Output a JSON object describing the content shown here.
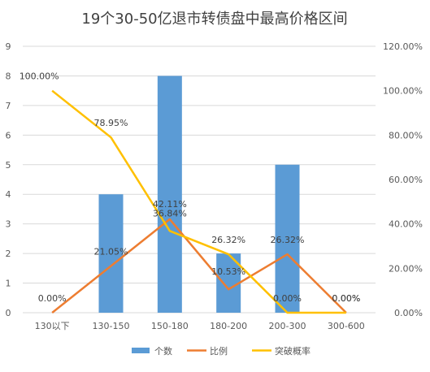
{
  "chart_data": {
    "type": "bar",
    "title": "19个30-50亿退市转债盘中最高价格区间",
    "categories": [
      "130以下",
      "130-150",
      "150-180",
      "180-200",
      "200-300",
      "300-600"
    ],
    "y_left": {
      "ticks": [
        "0",
        "1",
        "2",
        "3",
        "4",
        "5",
        "6",
        "7",
        "8",
        "9"
      ],
      "range": [
        0,
        9
      ]
    },
    "y_right": {
      "ticks": [
        "0.00%",
        "20.00%",
        "40.00%",
        "60.00%",
        "80.00%",
        "100.00%",
        "120.00%"
      ],
      "range": [
        0,
        120
      ]
    },
    "grid": true,
    "legend_position": "bottom",
    "series": [
      {
        "name": "个数",
        "type": "bar",
        "axis": "left",
        "color": "#5B9BD5",
        "values": [
          0,
          4,
          8,
          2,
          5,
          0
        ]
      },
      {
        "name": "比例",
        "type": "line",
        "axis": "right",
        "color": "#ED7D31",
        "values": [
          0,
          21.05,
          42.11,
          10.53,
          26.32,
          0
        ],
        "labels": [
          "0.00%",
          "21.05%",
          "42.11%",
          "10.53%",
          "26.32%",
          "0.00%"
        ]
      },
      {
        "name": "突破概率",
        "type": "line",
        "axis": "right",
        "color": "#FFC000",
        "values": [
          100,
          78.95,
          36.84,
          26.32,
          0,
          0
        ],
        "labels": [
          "100.00%",
          "78.95%",
          "36.84%",
          "26.32%",
          "0.00%",
          "0.00%"
        ]
      }
    ]
  }
}
